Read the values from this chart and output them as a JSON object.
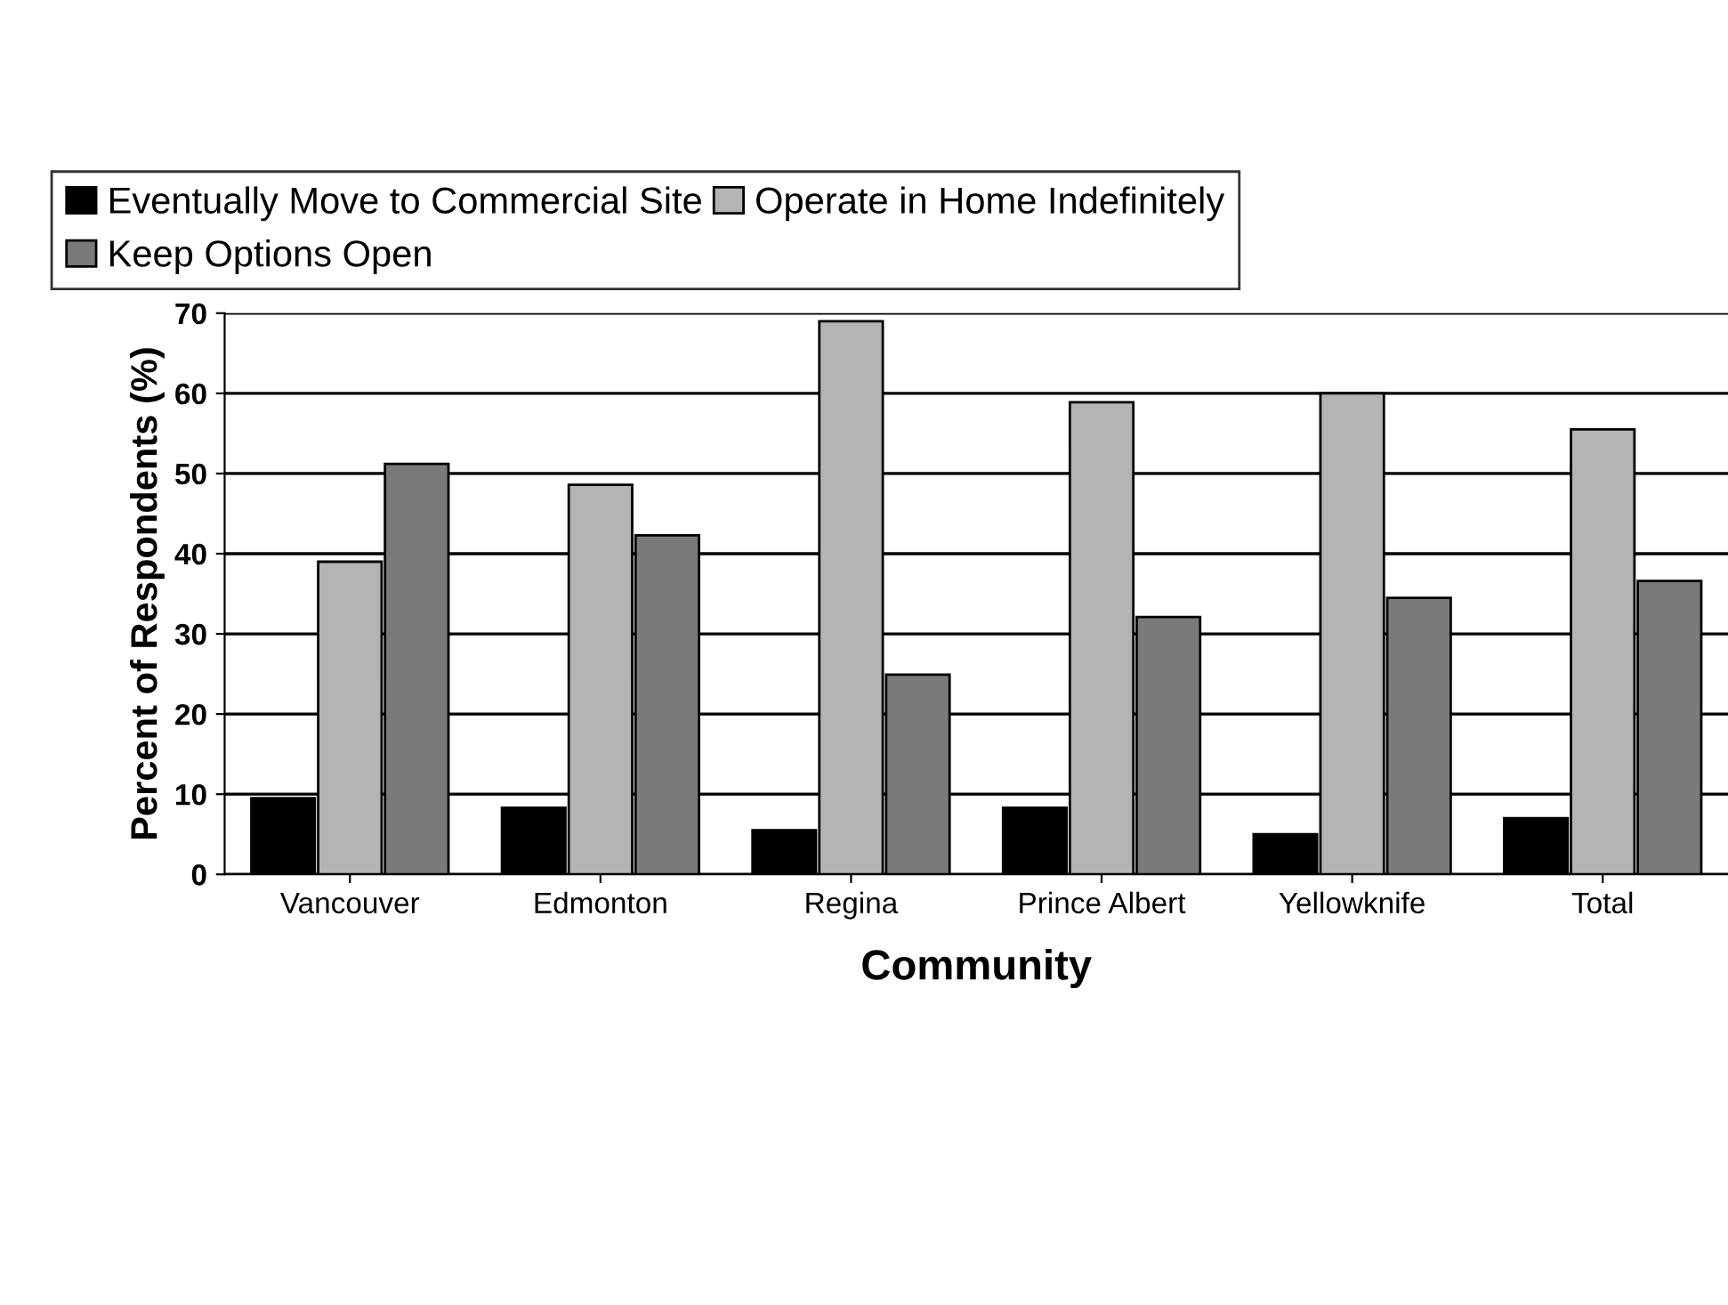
{
  "chart_data": {
    "type": "bar",
    "xlabel": "Community",
    "ylabel": "Percent of Respondents (%)",
    "categories": [
      "Vancouver",
      "Edmonton",
      "Regina",
      "Prince Albert",
      "Yellowknife",
      "Total"
    ],
    "series": [
      {
        "name": "Eventually Move to Commercial Site",
        "color": "#000000",
        "values": [
          9.5,
          8.3,
          5.5,
          8.3,
          5,
          7
        ]
      },
      {
        "name": "Operate in Home Indefinitely",
        "color": "#b4b4b4",
        "values": [
          39,
          48.6,
          69,
          58.9,
          60,
          55.5
        ]
      },
      {
        "name": "Keep Options Open",
        "color": "#7a7a7a",
        "values": [
          51.2,
          42.3,
          24.9,
          32.1,
          34.5,
          36.6
        ]
      }
    ],
    "ylim": [
      0,
      70
    ],
    "yticks": [
      0,
      10,
      20,
      30,
      40,
      50,
      60,
      70
    ],
    "grid": "y",
    "legend": "top"
  }
}
